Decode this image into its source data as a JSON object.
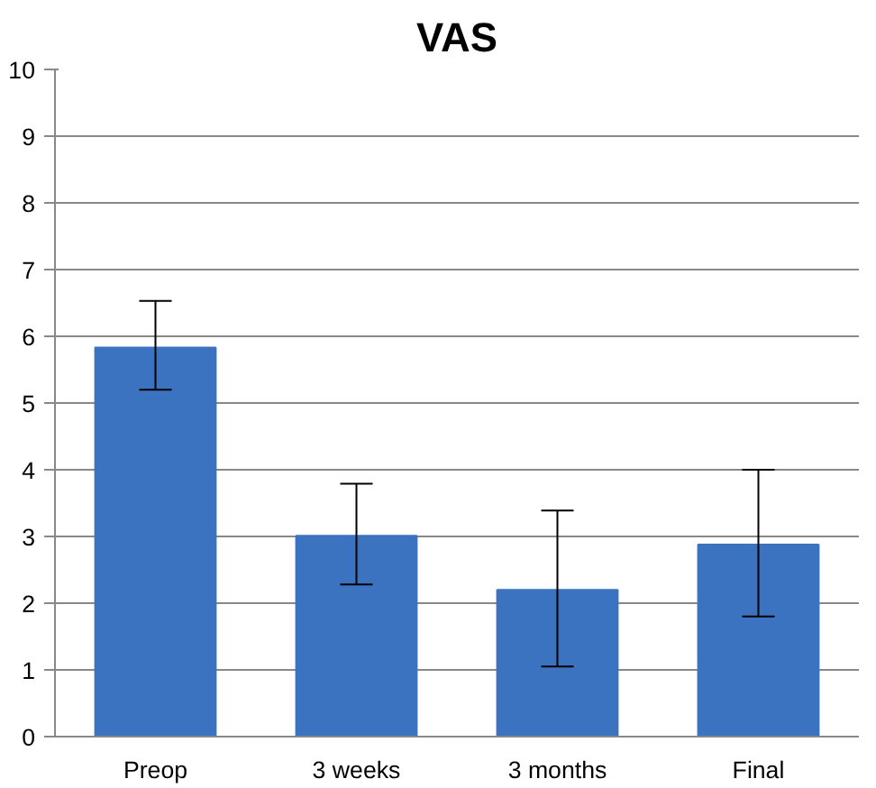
{
  "chart_data": {
    "type": "bar",
    "title": "VAS",
    "categories": [
      "Preop",
      "3 weeks",
      "3 months",
      "Final"
    ],
    "values": [
      5.83,
      3.01,
      2.2,
      2.88
    ],
    "errors": [
      [
        5.2,
        6.53
      ],
      [
        2.28,
        3.79
      ],
      [
        1.05,
        3.39
      ],
      [
        1.8,
        4.0
      ]
    ],
    "color": "#3c73c0",
    "ylim": [
      0,
      10
    ],
    "yticks": [
      0,
      1,
      2,
      3,
      4,
      5,
      6,
      7,
      8,
      9,
      10
    ],
    "grid": "y"
  }
}
